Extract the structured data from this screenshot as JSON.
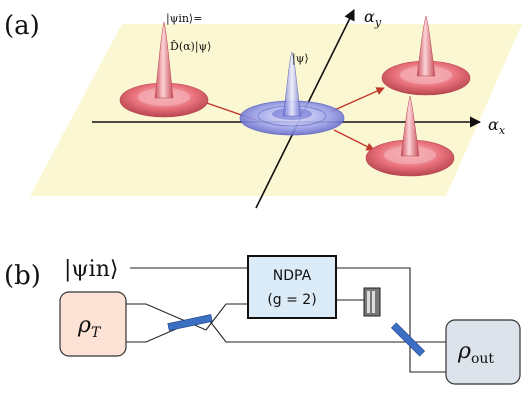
{
  "panel_a": {
    "label": "(a)",
    "axis_x": "α",
    "axis_x_sub": "x",
    "axis_y": "α",
    "axis_y_sub": "y",
    "psi_in_line1": "|ψin⟩=",
    "psi_in_line2": "D̂(α)|ψ⟩",
    "psi_center": "|ψ⟩",
    "colors": {
      "plane": "#fbf7d2",
      "displaced": "#e8707a",
      "center": "#7b7fd8",
      "arrow": "#c0392b"
    }
  },
  "panel_b": {
    "label": "(b)",
    "input_state": "|ψin⟩",
    "ndpa_line1": "NDPA",
    "ndpa_line2": "(g = 2)",
    "rho_t": "ρT",
    "rho_out": "ρout",
    "colors": {
      "rho_t_fill": "#fde3d6",
      "ndpa_fill": "#dcebf8",
      "rho_out_fill": "#dde3ea",
      "beamsplitter": "#3b6fc4"
    }
  }
}
